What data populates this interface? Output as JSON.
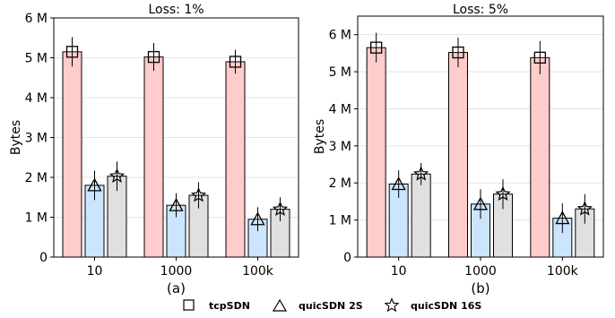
{
  "chart_data": [
    {
      "type": "bar",
      "title": "Loss: 1%",
      "caption": "(a)",
      "ylabel": "Bytes",
      "xlabel": "",
      "categories": [
        "10",
        "1000",
        "100k"
      ],
      "ylim": [
        0,
        6000000
      ],
      "yticks": [
        0,
        1000000,
        2000000,
        3000000,
        4000000,
        5000000,
        6000000
      ],
      "ytick_labels": [
        "0",
        "1 M",
        "2 M",
        "3 M",
        "4 M",
        "5 M",
        "6 M"
      ],
      "grid": "horizontal",
      "series": [
        {
          "name": "tcpSDN",
          "marker": "square",
          "color": "#ffcccc",
          "values": [
            5150000,
            5020000,
            4900000
          ],
          "errors": [
            370000,
            350000,
            300000
          ]
        },
        {
          "name": "quicSDN 2S",
          "marker": "triangle",
          "color": "#cce5ff",
          "values": [
            1800000,
            1300000,
            950000
          ],
          "errors": [
            370000,
            300000,
            300000
          ]
        },
        {
          "name": "quicSDN 16S",
          "marker": "star",
          "color": "#e0e0e0",
          "values": [
            2030000,
            1550000,
            1200000
          ],
          "errors": [
            370000,
            330000,
            300000
          ]
        }
      ]
    },
    {
      "type": "bar",
      "title": "Loss: 5%",
      "caption": "(b)",
      "ylabel": "Bytes",
      "xlabel": "",
      "categories": [
        "10",
        "1000",
        "100k"
      ],
      "ylim": [
        0,
        6500000
      ],
      "yticks": [
        0,
        1000000,
        2000000,
        3000000,
        4000000,
        5000000,
        6000000
      ],
      "ytick_labels": [
        "0",
        "1 M",
        "2 M",
        "3 M",
        "4 M",
        "5 M",
        "6 M"
      ],
      "grid": "horizontal",
      "series": [
        {
          "name": "tcpSDN",
          "marker": "square",
          "color": "#ffcccc",
          "values": [
            5650000,
            5520000,
            5380000
          ],
          "errors": [
            400000,
            400000,
            450000
          ]
        },
        {
          "name": "quicSDN 2S",
          "marker": "triangle",
          "color": "#cce5ff",
          "values": [
            1970000,
            1430000,
            1050000
          ],
          "errors": [
            370000,
            400000,
            400000
          ]
        },
        {
          "name": "quicSDN 16S",
          "marker": "star",
          "color": "#e0e0e0",
          "values": [
            2240000,
            1700000,
            1300000
          ],
          "errors": [
            300000,
            400000,
            400000
          ]
        }
      ]
    }
  ],
  "legend": {
    "placement": "bottom",
    "items": [
      {
        "label": "tcpSDN",
        "marker": "square"
      },
      {
        "label": "quicSDN 2S",
        "marker": "triangle"
      },
      {
        "label": "quicSDN 16S",
        "marker": "star"
      }
    ]
  }
}
